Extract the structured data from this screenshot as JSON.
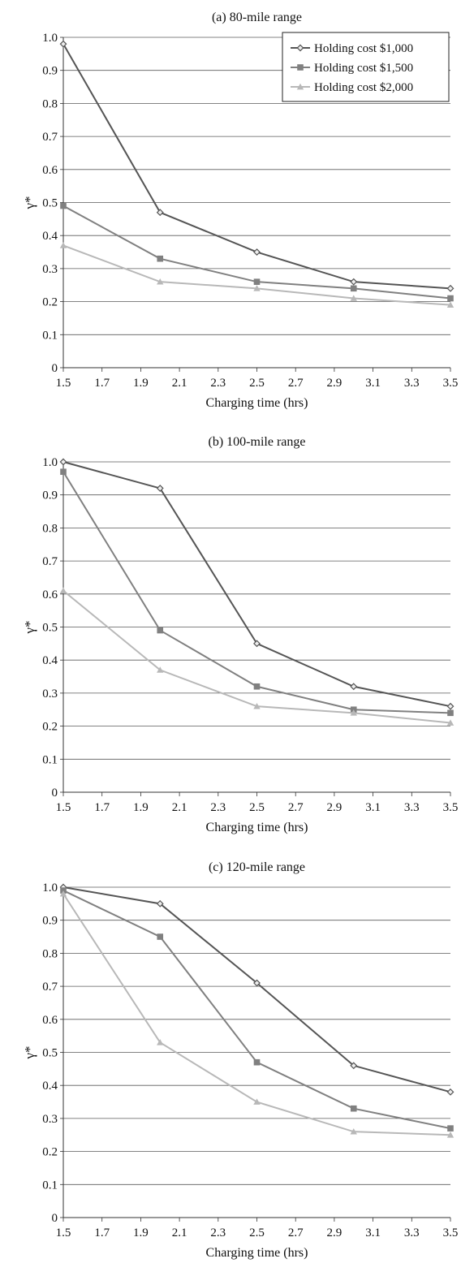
{
  "chart_data": [
    {
      "type": "line",
      "title": "(a) 80-mile range",
      "xlabel": "Charging time (hrs)",
      "ylabel": "γ*",
      "xlim": [
        1.5,
        3.5
      ],
      "ylim": [
        0,
        1.0
      ],
      "xticks": [
        "1.5",
        "1.7",
        "1.9",
        "2.1",
        "2.3",
        "2.5",
        "2.7",
        "2.9",
        "3.1",
        "3.3",
        "3.5"
      ],
      "yticks": [
        "0",
        "0.1",
        "0.2",
        "0.3",
        "0.4",
        "0.5",
        "0.6",
        "0.7",
        "0.8",
        "0.9",
        "1.0"
      ],
      "grid": "horizontal",
      "legend": "top-right",
      "x": [
        1.5,
        2.0,
        2.5,
        3.0,
        3.5
      ],
      "series": [
        {
          "name": "Holding cost $1,000",
          "color": "#555555",
          "marker": "diamond",
          "values": [
            0.98,
            0.47,
            0.35,
            0.26,
            0.24
          ]
        },
        {
          "name": "Holding cost $1,500",
          "color": "#808080",
          "marker": "square",
          "values": [
            0.49,
            0.33,
            0.26,
            0.24,
            0.21
          ]
        },
        {
          "name": "Holding cost $2,000",
          "color": "#b8b8b8",
          "marker": "triangle",
          "values": [
            0.37,
            0.26,
            0.24,
            0.21,
            0.19
          ]
        }
      ]
    },
    {
      "type": "line",
      "title": "(b) 100-mile range",
      "xlabel": "Charging time (hrs)",
      "ylabel": "γ*",
      "xlim": [
        1.5,
        3.5
      ],
      "ylim": [
        0,
        1.0
      ],
      "xticks": [
        "1.5",
        "1.7",
        "1.9",
        "2.1",
        "2.3",
        "2.5",
        "2.7",
        "2.9",
        "3.1",
        "3.3",
        "3.5"
      ],
      "yticks": [
        "0",
        "0.1",
        "0.2",
        "0.3",
        "0.4",
        "0.5",
        "0.6",
        "0.7",
        "0.8",
        "0.9",
        "1.0"
      ],
      "grid": "horizontal",
      "legend": "none",
      "x": [
        1.5,
        2.0,
        2.5,
        3.0,
        3.5
      ],
      "series": [
        {
          "name": "Holding cost $1,000",
          "color": "#555555",
          "marker": "diamond",
          "values": [
            1.0,
            0.92,
            0.45,
            0.32,
            0.26
          ]
        },
        {
          "name": "Holding cost $1,500",
          "color": "#808080",
          "marker": "square",
          "values": [
            0.97,
            0.49,
            0.32,
            0.25,
            0.24
          ]
        },
        {
          "name": "Holding cost $2,000",
          "color": "#b8b8b8",
          "marker": "triangle",
          "values": [
            0.61,
            0.37,
            0.26,
            0.24,
            0.21
          ]
        }
      ]
    },
    {
      "type": "line",
      "title": "(c) 120-mile range",
      "xlabel": "Charging time (hrs)",
      "ylabel": "γ*",
      "xlim": [
        1.5,
        3.5
      ],
      "ylim": [
        0,
        1.0
      ],
      "xticks": [
        "1.5",
        "1.7",
        "1.9",
        "2.1",
        "2.3",
        "2.5",
        "2.7",
        "2.9",
        "3.1",
        "3.3",
        "3.5"
      ],
      "yticks": [
        "0",
        "0.1",
        "0.2",
        "0.3",
        "0.4",
        "0.5",
        "0.6",
        "0.7",
        "0.8",
        "0.9",
        "1.0"
      ],
      "grid": "horizontal",
      "legend": "none",
      "x": [
        1.5,
        2.0,
        2.5,
        3.0,
        3.5
      ],
      "series": [
        {
          "name": "Holding cost $1,000",
          "color": "#555555",
          "marker": "diamond",
          "values": [
            1.0,
            0.95,
            0.71,
            0.46,
            0.38
          ]
        },
        {
          "name": "Holding cost $1,500",
          "color": "#808080",
          "marker": "square",
          "values": [
            0.99,
            0.85,
            0.47,
            0.33,
            0.27
          ]
        },
        {
          "name": "Holding cost $2,000",
          "color": "#b8b8b8",
          "marker": "triangle",
          "values": [
            0.98,
            0.53,
            0.35,
            0.26,
            0.25
          ]
        }
      ]
    }
  ]
}
